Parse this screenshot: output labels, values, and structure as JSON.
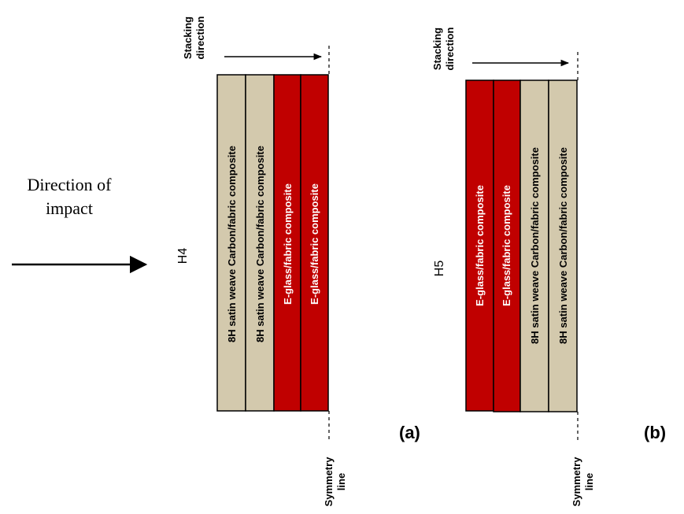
{
  "impact": {
    "line1": "Direction of",
    "line2": "impact"
  },
  "stacking": {
    "line1": "Stacking",
    "line2": "direction"
  },
  "symmetry": {
    "line1": "Symmetry",
    "line2": "line"
  },
  "panels": [
    {
      "code": "H4",
      "tag": "(a)",
      "layers": [
        {
          "label": "8H satin weave Carbon/fabric composite",
          "color": "#d3c9ad",
          "text_color": "#000000"
        },
        {
          "label": "8H satin weave Carbon/fabric composite",
          "color": "#d3c9ad",
          "text_color": "#000000"
        },
        {
          "label": "E-glass/fabric composite",
          "color": "#c00000",
          "text_color": "#ffffff"
        },
        {
          "label": "E-glass/fabric composite",
          "color": "#c00000",
          "text_color": "#ffffff"
        }
      ]
    },
    {
      "code": "H5",
      "tag": "(b)",
      "layers": [
        {
          "label": "E-glass/fabric composite",
          "color": "#c00000",
          "text_color": "#ffffff"
        },
        {
          "label": "E-glass/fabric composite",
          "color": "#c00000",
          "text_color": "#ffffff"
        },
        {
          "label": "8H satin weave Carbon/fabric composite",
          "color": "#d3c9ad",
          "text_color": "#000000"
        },
        {
          "label": "8H satin weave Carbon/fabric composite",
          "color": "#d3c9ad",
          "text_color": "#000000"
        }
      ]
    }
  ]
}
